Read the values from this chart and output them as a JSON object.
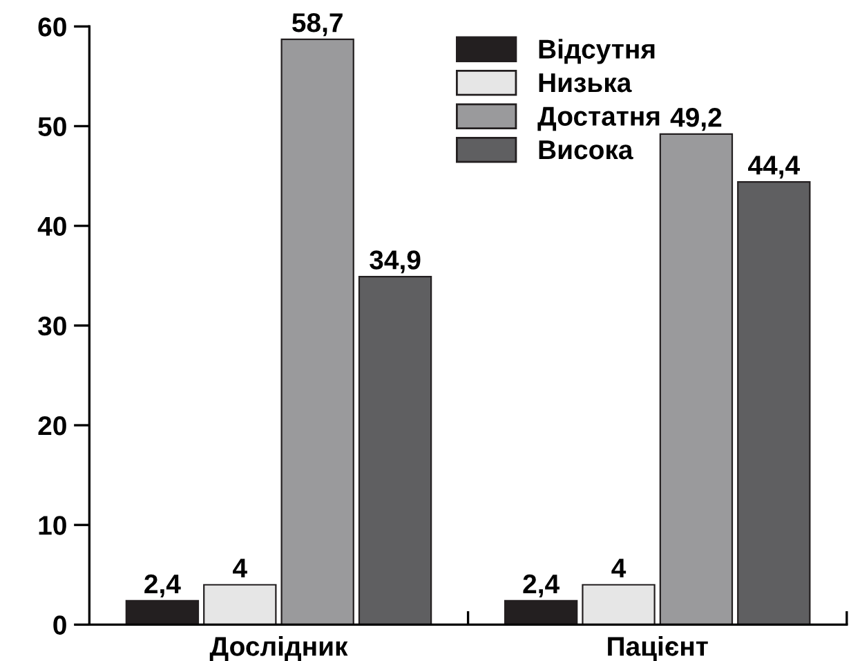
{
  "chart_data": {
    "type": "bar",
    "categories": [
      "Дослідник",
      "Пацієнт"
    ],
    "series": [
      {
        "name": "Відсутня",
        "color": "#231f20",
        "values": [
          2.4,
          2.4
        ],
        "value_labels": [
          "2,4",
          "2,4"
        ]
      },
      {
        "name": "Низька",
        "color": "#e6e6e6",
        "values": [
          4,
          4
        ],
        "value_labels": [
          "4",
          "4"
        ]
      },
      {
        "name": "Достатня",
        "color": "#9a9a9c",
        "values": [
          58.7,
          49.2
        ],
        "value_labels": [
          "58,7",
          "49,2"
        ]
      },
      {
        "name": "Висока",
        "color": "#5f5f61",
        "values": [
          34.9,
          44.4
        ],
        "value_labels": [
          "34,9",
          "44,4"
        ]
      }
    ],
    "ylim": [
      0,
      60
    ],
    "yticks": [
      0,
      10,
      20,
      30,
      40,
      50,
      60
    ],
    "grid": false,
    "legend": "top"
  }
}
